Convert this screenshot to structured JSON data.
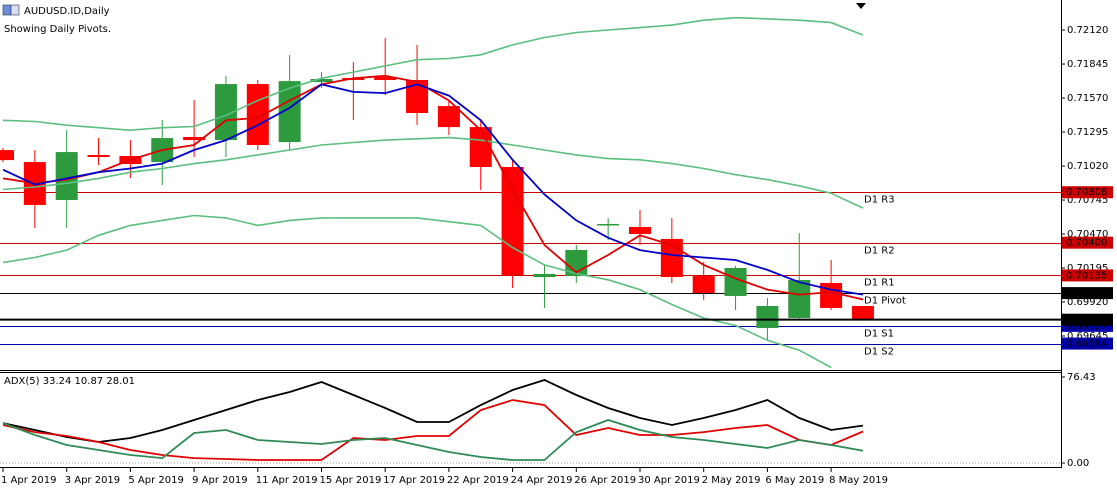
{
  "chart_data": [
    {
      "type": "candlestick",
      "title": "AUDUSD.ID,Daily",
      "subtitle": "Showing Daily Pivots.",
      "categories": [
        "1 Apr 2019",
        null,
        "3 Apr 2019",
        null,
        "5 Apr 2019",
        null,
        "9 Apr 2019",
        null,
        "11 Apr 2019",
        null,
        "15 Apr 2019",
        null,
        "17 Apr 2019",
        null,
        "22 Apr 2019",
        null,
        "24 Apr 2019",
        null,
        "26 Apr 2019",
        null,
        "30 Apr 2019",
        null,
        "2 May 2019",
        null,
        "6 May 2019",
        null,
        "8 May 2019",
        null
      ],
      "open": [
        0.71149,
        0.71052,
        0.70745,
        0.71109,
        0.71101,
        0.71052,
        0.71255,
        0.7123,
        0.71683,
        0.71214,
        0.71699,
        0.71732,
        0.7174,
        0.71716,
        0.71505,
        0.71335,
        0.71012,
        0.70122,
        0.7013,
        0.70543,
        0.70527,
        0.7043,
        0.7013,
        0.69969,
        0.6971,
        0.69791,
        0.70074,
        0.69888
      ],
      "high": [
        0.71166,
        0.71149,
        0.71311,
        0.71246,
        0.7123,
        0.71392,
        0.71554,
        0.71748,
        0.71716,
        0.71918,
        0.7178,
        0.71861,
        0.72055,
        0.71999,
        0.71554,
        0.71392,
        0.71068,
        0.70219,
        0.70381,
        0.70599,
        0.70664,
        0.70599,
        0.70244,
        0.70211,
        0.69952,
        0.70478,
        0.7026,
        0.69888
      ],
      "low": [
        0.71052,
        0.70519,
        0.70519,
        0.71028,
        0.70923,
        0.70866,
        0.71093,
        0.71093,
        0.71149,
        0.71149,
        0.71651,
        0.71392,
        0.71594,
        0.71352,
        0.71271,
        0.70826,
        0.70033,
        0.69872,
        0.70074,
        0.70421,
        0.70381,
        0.70074,
        0.69936,
        0.69855,
        0.69613,
        0.69775,
        0.69855,
        0.6977
      ],
      "close": [
        0.71068,
        0.70705,
        0.71133,
        0.71093,
        0.71036,
        0.71246,
        0.7123,
        0.71683,
        0.7119,
        0.71707,
        0.71724,
        0.71716,
        0.71716,
        0.71449,
        0.71335,
        0.71012,
        0.70138,
        0.70147,
        0.70341,
        0.70551,
        0.7047,
        0.70122,
        0.69993,
        0.70195,
        0.69888,
        0.70098,
        0.69872,
        0.69777
      ],
      "up_color": "#2e9a3e",
      "down_color": "#ff0000",
      "series": [
        {
          "color": "#5bbf7f",
          "values": [
            0.7139,
            0.7138,
            0.7135,
            0.7133,
            0.7131,
            0.7133,
            0.7134,
            0.7143,
            0.7155,
            0.7165,
            0.7173,
            0.7178,
            0.7183,
            0.7188,
            0.7189,
            0.7192,
            0.72,
            0.7206,
            0.721,
            0.7212,
            0.7214,
            0.7216,
            0.722,
            0.7222,
            0.7221,
            0.722,
            0.7218,
            0.7208
          ]
        },
        {
          "color": "#5bbf7f",
          "values": [
            0.7083,
            0.7085,
            0.7088,
            0.7092,
            0.7097,
            0.71,
            0.7104,
            0.7107,
            0.7111,
            0.7115,
            0.7119,
            0.7121,
            0.7123,
            0.7124,
            0.7125,
            0.7123,
            0.7119,
            0.7115,
            0.7111,
            0.7108,
            0.7107,
            0.7104,
            0.71,
            0.7095,
            0.7091,
            0.7086,
            0.708,
            0.7068
          ]
        },
        {
          "color": "#5bbf7f",
          "values": [
            0.7024,
            0.7028,
            0.7034,
            0.7046,
            0.7054,
            0.7058,
            0.7062,
            0.706,
            0.7054,
            0.7058,
            0.706,
            0.706,
            0.706,
            0.706,
            0.7057,
            0.7054,
            0.7036,
            0.7022,
            0.7015,
            0.701,
            0.7002,
            0.699,
            0.6979,
            0.6973,
            0.6961,
            0.6953,
            0.6939,
            null
          ]
        },
        {
          "color": "#e00000",
          "values": [
            0.7092,
            0.7088,
            0.7091,
            0.7097,
            0.7107,
            0.7115,
            0.7119,
            0.7139,
            0.7141,
            0.7155,
            0.7168,
            0.7173,
            0.7175,
            0.717,
            0.7155,
            0.7131,
            0.7083,
            0.7038,
            0.7016,
            0.703,
            0.7046,
            0.7038,
            0.7022,
            0.7011,
            0.7002,
            0.6998,
            0.7,
            0.6994
          ]
        },
        {
          "color": "#0000cc",
          "values": [
            0.7099,
            0.7087,
            0.7092,
            0.7097,
            0.71,
            0.7104,
            0.7115,
            0.7123,
            0.7135,
            0.7149,
            0.7168,
            0.7162,
            0.7161,
            0.7168,
            0.7159,
            0.7139,
            0.7107,
            0.7079,
            0.7058,
            0.7044,
            0.7034,
            0.703,
            0.7028,
            0.7026,
            0.7018,
            0.7008,
            0.7002,
            0.6998
          ]
        }
      ],
      "pivots": [
        {
          "name": "D1 R3",
          "value": 0.70808,
          "value_label": "0.70808",
          "color": "#cc0000"
        },
        {
          "name": "D1 R2",
          "value": 0.704,
          "value_label": "0.70400",
          "color": "#cc0000"
        },
        {
          "name": "D1 R1",
          "value": 0.70135,
          "value_label": "0.70135",
          "color": "#cc0000"
        },
        {
          "name": "D1 Pivot",
          "value": 0.69992,
          "value_label": "0.69992",
          "color": "#000000"
        },
        {
          "name": "D1 S1",
          "value": 0.69727,
          "value_label": "0.69727",
          "color": "#0000aa"
        },
        {
          "name": "D1 S2",
          "value": 0.69584,
          "value_label": "0.69584",
          "color": "#0000aa"
        }
      ],
      "ylim": [
        0.6937,
        0.72363
      ],
      "yticks": [
        {
          "value": 0.7212,
          "label": "0.72120"
        },
        0.71845,
        {
          "value": 0.7157,
          "label": "0.71570"
        },
        0.71295,
        {
          "value": 0.7102,
          "label": "0.71020"
        },
        0.70745,
        {
          "value": 0.7047,
          "label": "0.70470"
        },
        0.70195,
        {
          "value": 0.6992,
          "label": "0.69920"
        },
        0.69645
      ]
    },
    {
      "type": "line",
      "title": "ADX(5) 33.24 10.87 28.01",
      "series": [
        {
          "color": "#000000",
          "values": [
            35.5,
            29.3,
            23.1,
            18.7,
            22.2,
            29.3,
            38.2,
            47.1,
            56.0,
            63.1,
            72.0,
            60.4,
            48.9,
            36.4,
            36.4,
            51.5,
            64.9,
            73.8,
            60.4,
            48.9,
            40.0,
            33.8,
            40.0,
            47.1,
            56.0,
            40.0,
            29.3,
            33.24
          ]
        },
        {
          "color": "#e00000",
          "values": [
            33.8,
            27.5,
            24.0,
            18.7,
            11.6,
            7.1,
            4.4,
            3.6,
            2.7,
            2.7,
            2.7,
            22.2,
            20.4,
            24.0,
            24.0,
            47.1,
            56.0,
            51.5,
            24.9,
            31.1,
            24.9,
            24.9,
            27.5,
            31.1,
            33.8,
            20.4,
            16.0,
            28.01
          ]
        },
        {
          "color": "#2e8b57",
          "values": [
            35.5,
            24.9,
            16.0,
            11.6,
            7.1,
            4.4,
            26.7,
            29.3,
            20.4,
            18.7,
            16.9,
            20.4,
            22.2,
            16.0,
            9.8,
            5.3,
            2.7,
            2.7,
            27.5,
            38.2,
            29.3,
            23.1,
            20.4,
            16.9,
            13.3,
            20.4,
            16.0,
            10.87
          ]
        }
      ],
      "ylim": [
        -3.55,
        80.87
      ],
      "yticks": [
        76.43,
        {
          "value": 0,
          "label": "0.00"
        }
      ]
    }
  ]
}
